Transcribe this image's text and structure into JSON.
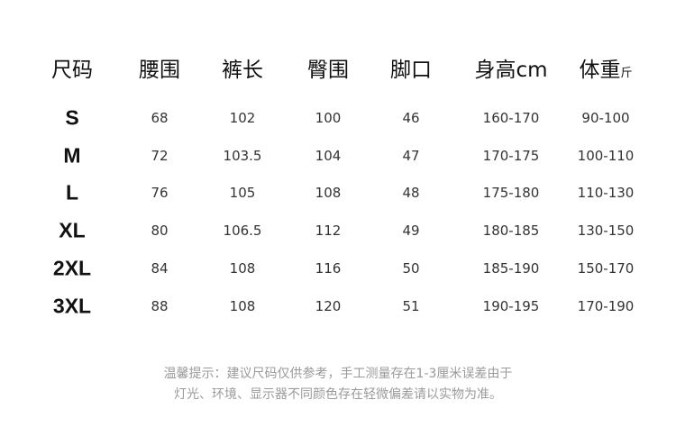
{
  "headers": [
    "尺码",
    "腰围",
    "裤长",
    "臀围",
    "脚口",
    "身高cm",
    "体重"
  ],
  "weight_unit": "斤",
  "rows": [
    [
      "S",
      "68",
      "102",
      "100",
      "46",
      "160-170",
      "90-100"
    ],
    [
      "M",
      "72",
      "103.5",
      "104",
      "47",
      "170-175",
      "100-110"
    ],
    [
      "L",
      "76",
      "105",
      "108",
      "48",
      "175-180",
      "110-130"
    ],
    [
      "XL",
      "80",
      "106.5",
      "112",
      "49",
      "180-185",
      "130-150"
    ],
    [
      "2XL",
      "84",
      "108",
      "116",
      "50",
      "185-190",
      "150-170"
    ],
    [
      "3XL",
      "88",
      "108",
      "120",
      "51",
      "190-195",
      "170-190"
    ]
  ],
  "note": {
    "line1": "温馨提示：建议尺码仅供参考，手工测量存在1-3厘米误差由于",
    "line2": "灯光、环境、显示器不同颜色存在轻微偏差请以实物为准。"
  }
}
